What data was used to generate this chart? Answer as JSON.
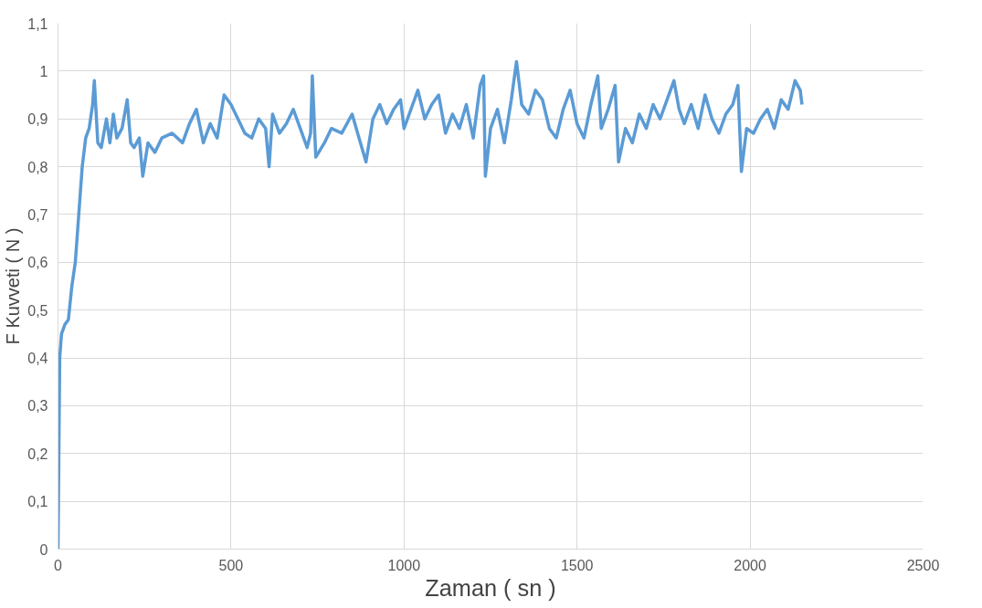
{
  "chart_data": {
    "type": "line",
    "xlabel": "Zaman ( sn )",
    "ylabel": "F Kuvveti ( N )",
    "xlim": [
      0,
      2500
    ],
    "xticks": [
      0,
      500,
      1000,
      1500,
      2000,
      2500
    ],
    "ylim": [
      0,
      1.1
    ],
    "yticks": [
      0,
      {
        "value": 0.1,
        "label": "0,1"
      },
      {
        "value": 0.2,
        "label": "0,2"
      },
      {
        "value": 0.3,
        "label": "0,3"
      },
      {
        "value": 0.4,
        "label": "0,4"
      },
      {
        "value": 0.5,
        "label": "0,5"
      },
      {
        "value": 0.6,
        "label": "0,6"
      },
      {
        "value": 0.7,
        "label": "0,7"
      },
      {
        "value": 0.8,
        "label": "0,8"
      },
      {
        "value": 0.9,
        "label": "0,9"
      },
      1,
      {
        "value": 1.1,
        "label": "1,1"
      }
    ],
    "grid": true,
    "marker": "none",
    "line_style": "solid",
    "series": [
      {
        "color": "#5b9bd5",
        "x": [
          0,
          5,
          10,
          20,
          30,
          40,
          50,
          60,
          70,
          80,
          90,
          100,
          105,
          115,
          125,
          140,
          150,
          160,
          170,
          185,
          200,
          210,
          220,
          235,
          245,
          260,
          280,
          300,
          330,
          360,
          380,
          400,
          420,
          440,
          460,
          480,
          500,
          520,
          540,
          560,
          580,
          600,
          610,
          620,
          640,
          660,
          680,
          700,
          720,
          730,
          735,
          745,
          770,
          790,
          820,
          850,
          870,
          890,
          910,
          930,
          950,
          970,
          990,
          1000,
          1020,
          1040,
          1060,
          1080,
          1100,
          1120,
          1140,
          1160,
          1180,
          1200,
          1220,
          1230,
          1235,
          1250,
          1270,
          1290,
          1310,
          1325,
          1340,
          1360,
          1380,
          1400,
          1420,
          1440,
          1460,
          1480,
          1500,
          1520,
          1540,
          1560,
          1570,
          1590,
          1610,
          1620,
          1640,
          1660,
          1680,
          1700,
          1720,
          1740,
          1760,
          1780,
          1795,
          1810,
          1830,
          1850,
          1870,
          1890,
          1910,
          1930,
          1950,
          1965,
          1975,
          1990,
          2010,
          2030,
          2050,
          2070,
          2090,
          2110,
          2130,
          2145,
          2150
        ],
        "values": [
          0,
          0.4,
          0.45,
          0.47,
          0.48,
          0.55,
          0.6,
          0.7,
          0.8,
          0.86,
          0.88,
          0.93,
          0.98,
          0.85,
          0.84,
          0.9,
          0.85,
          0.91,
          0.86,
          0.88,
          0.94,
          0.85,
          0.84,
          0.86,
          0.78,
          0.85,
          0.83,
          0.86,
          0.87,
          0.85,
          0.89,
          0.92,
          0.85,
          0.89,
          0.86,
          0.95,
          0.93,
          0.9,
          0.87,
          0.86,
          0.9,
          0.88,
          0.8,
          0.91,
          0.87,
          0.89,
          0.92,
          0.88,
          0.84,
          0.87,
          0.99,
          0.82,
          0.85,
          0.88,
          0.87,
          0.91,
          0.86,
          0.81,
          0.9,
          0.93,
          0.89,
          0.92,
          0.94,
          0.88,
          0.92,
          0.96,
          0.9,
          0.93,
          0.95,
          0.87,
          0.91,
          0.88,
          0.93,
          0.86,
          0.97,
          0.99,
          0.78,
          0.88,
          0.92,
          0.85,
          0.94,
          1.02,
          0.93,
          0.91,
          0.96,
          0.94,
          0.88,
          0.86,
          0.92,
          0.96,
          0.89,
          0.86,
          0.93,
          0.99,
          0.88,
          0.92,
          0.97,
          0.81,
          0.88,
          0.85,
          0.91,
          0.88,
          0.93,
          0.9,
          0.94,
          0.98,
          0.92,
          0.89,
          0.93,
          0.88,
          0.95,
          0.9,
          0.87,
          0.91,
          0.93,
          0.97,
          0.79,
          0.88,
          0.87,
          0.9,
          0.92,
          0.88,
          0.94,
          0.92,
          0.98,
          0.96,
          0.93
        ]
      }
    ]
  }
}
